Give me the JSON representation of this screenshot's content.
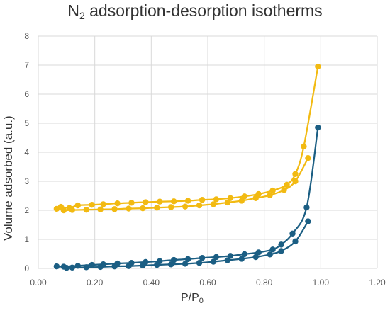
{
  "chart_data": {
    "type": "scatter",
    "title_main": "N",
    "title_sub": "2",
    "title_rest": " adsorption-desorption isotherms",
    "xlabel_main": "P/P",
    "xlabel_sub": "0",
    "ylabel": "Volume adsorbed (a.u.)",
    "xlim": [
      0,
      1.2
    ],
    "ylim": [
      0,
      8
    ],
    "x_ticks": [
      "0.00",
      "0.20",
      "0.40",
      "0.60",
      "0.80",
      "1.00",
      "1.20"
    ],
    "y_ticks": [
      "0",
      "1",
      "2",
      "3",
      "4",
      "5",
      "6",
      "7",
      "8"
    ],
    "grid": true,
    "legend": "none",
    "series": [
      {
        "color": "#F2BA12",
        "branch": "upper",
        "points": [
          [
            0.065,
            2.05
          ],
          [
            0.08,
            2.12
          ],
          [
            0.11,
            2.08
          ],
          [
            0.14,
            2.17
          ],
          [
            0.19,
            2.19
          ],
          [
            0.23,
            2.21
          ],
          [
            0.28,
            2.24
          ],
          [
            0.33,
            2.26
          ],
          [
            0.38,
            2.28
          ],
          [
            0.43,
            2.3
          ],
          [
            0.48,
            2.31
          ],
          [
            0.53,
            2.33
          ],
          [
            0.58,
            2.36
          ],
          [
            0.63,
            2.38
          ],
          [
            0.68,
            2.42
          ],
          [
            0.73,
            2.48
          ],
          [
            0.78,
            2.56
          ],
          [
            0.83,
            2.68
          ],
          [
            0.88,
            2.88
          ],
          [
            0.91,
            3.25
          ],
          [
            0.94,
            4.2
          ],
          [
            0.99,
            6.95
          ]
        ]
      },
      {
        "color": "#F2BA12",
        "branch": "lower",
        "points": [
          [
            0.09,
            2.0
          ],
          [
            0.12,
            2.01
          ],
          [
            0.17,
            2.02
          ],
          [
            0.22,
            2.03
          ],
          [
            0.27,
            2.04
          ],
          [
            0.32,
            2.06
          ],
          [
            0.37,
            2.07
          ],
          [
            0.42,
            2.09
          ],
          [
            0.47,
            2.11
          ],
          [
            0.52,
            2.13
          ],
          [
            0.57,
            2.17
          ],
          [
            0.62,
            2.21
          ],
          [
            0.67,
            2.27
          ],
          [
            0.72,
            2.33
          ],
          [
            0.77,
            2.42
          ],
          [
            0.82,
            2.52
          ],
          [
            0.87,
            2.7
          ],
          [
            0.91,
            3.0
          ],
          [
            0.955,
            3.8
          ]
        ]
      },
      {
        "color": "#1B5E83",
        "branch": "upper",
        "points": [
          [
            0.065,
            0.07
          ],
          [
            0.09,
            0.06
          ],
          [
            0.14,
            0.09
          ],
          [
            0.19,
            0.12
          ],
          [
            0.23,
            0.14
          ],
          [
            0.28,
            0.17
          ],
          [
            0.33,
            0.19
          ],
          [
            0.38,
            0.22
          ],
          [
            0.43,
            0.25
          ],
          [
            0.48,
            0.29
          ],
          [
            0.53,
            0.32
          ],
          [
            0.58,
            0.36
          ],
          [
            0.63,
            0.39
          ],
          [
            0.68,
            0.43
          ],
          [
            0.73,
            0.49
          ],
          [
            0.78,
            0.55
          ],
          [
            0.83,
            0.65
          ],
          [
            0.86,
            0.82
          ],
          [
            0.9,
            1.2
          ],
          [
            0.95,
            2.1
          ],
          [
            0.99,
            4.85
          ]
        ]
      },
      {
        "color": "#1B5E83",
        "branch": "lower",
        "points": [
          [
            0.1,
            0.02
          ],
          [
            0.12,
            0.03
          ],
          [
            0.17,
            0.04
          ],
          [
            0.22,
            0.05
          ],
          [
            0.27,
            0.07
          ],
          [
            0.32,
            0.08
          ],
          [
            0.37,
            0.1
          ],
          [
            0.42,
            0.12
          ],
          [
            0.47,
            0.14
          ],
          [
            0.52,
            0.16
          ],
          [
            0.57,
            0.19
          ],
          [
            0.62,
            0.23
          ],
          [
            0.67,
            0.28
          ],
          [
            0.72,
            0.33
          ],
          [
            0.77,
            0.39
          ],
          [
            0.82,
            0.48
          ],
          [
            0.86,
            0.6
          ],
          [
            0.91,
            0.93
          ],
          [
            0.955,
            1.62
          ]
        ]
      }
    ]
  }
}
